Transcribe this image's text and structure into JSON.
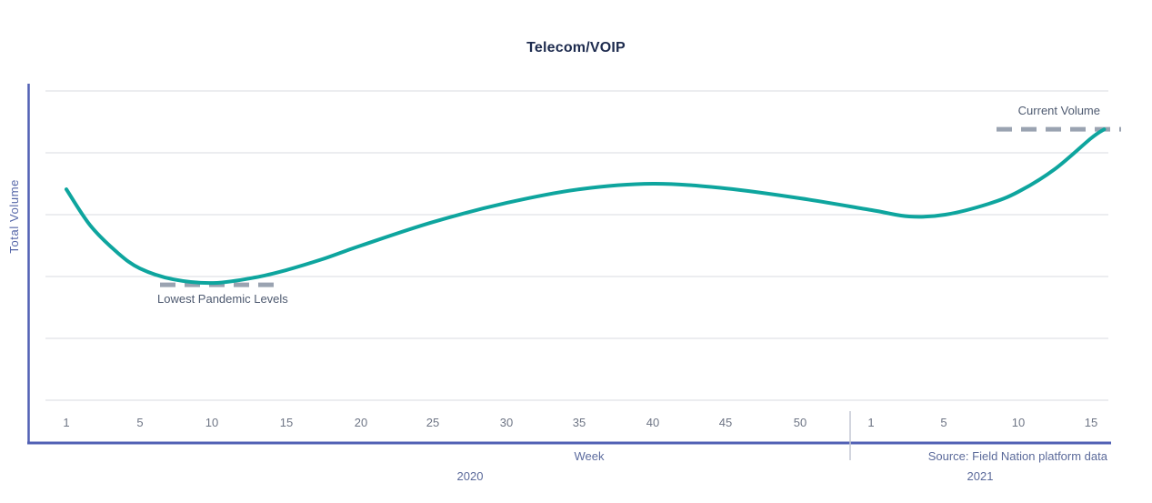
{
  "title": "Telecom/VOIP",
  "colors": {
    "curve": "#0ea59e",
    "axis": "#5160b4",
    "grid": "#d8dbe1",
    "dash": "#9aa3b1",
    "divider": "#c2c7d3",
    "title_text": "#1d2b4e",
    "tick_text": "#6e7585",
    "annotation_text": "#4e5a70"
  },
  "chart_data": {
    "type": "line",
    "title": "Telecom/VOIP",
    "xlabel": "Week",
    "ylabel": "Total Volume",
    "source": "Source: Field Nation platform data",
    "legend": "none",
    "grid": "horizontal",
    "y_axis": {
      "range": [
        0,
        100
      ],
      "gridline_values": [
        0,
        20,
        40,
        60,
        80,
        100
      ],
      "tick_labels_shown": false,
      "note": "y values are relative total volume (no numeric labels shown on axis)"
    },
    "x_axis": {
      "groups": [
        {
          "year": "2020",
          "ticks": [
            1,
            5,
            10,
            15,
            20,
            25,
            30,
            35,
            40,
            45,
            50
          ]
        },
        {
          "year": "2021",
          "ticks": [
            1,
            5,
            10,
            15
          ]
        }
      ]
    },
    "series": [
      {
        "name": "Total Volume",
        "points": [
          {
            "year": "2020",
            "week": 1.0,
            "value": 68.2
          },
          {
            "year": "2020",
            "week": 2.3,
            "value": 56.5
          },
          {
            "year": "2020",
            "week": 3.8,
            "value": 47.6
          },
          {
            "year": "2020",
            "week": 5.0,
            "value": 42.6
          },
          {
            "year": "2020",
            "week": 7.3,
            "value": 39.1
          },
          {
            "year": "2020",
            "week": 10.1,
            "value": 37.9
          },
          {
            "year": "2020",
            "week": 12.9,
            "value": 39.7
          },
          {
            "year": "2020",
            "week": 15.0,
            "value": 42.1
          },
          {
            "year": "2020",
            "week": 17.4,
            "value": 45.6
          },
          {
            "year": "2020",
            "week": 20.0,
            "value": 50.0
          },
          {
            "year": "2020",
            "week": 25.0,
            "value": 57.6
          },
          {
            "year": "2020",
            "week": 30.0,
            "value": 63.8
          },
          {
            "year": "2020",
            "week": 35.0,
            "value": 68.2
          },
          {
            "year": "2020",
            "week": 40.0,
            "value": 70.0
          },
          {
            "year": "2020",
            "week": 45.0,
            "value": 68.5
          },
          {
            "year": "2020",
            "week": 50.0,
            "value": 65.3
          },
          {
            "year": "2021",
            "week": 1.0,
            "value": 61.5
          },
          {
            "year": "2021",
            "week": 3.1,
            "value": 59.4
          },
          {
            "year": "2021",
            "week": 5.1,
            "value": 60.0
          },
          {
            "year": "2021",
            "week": 8.0,
            "value": 63.5
          },
          {
            "year": "2021",
            "week": 10.0,
            "value": 67.4
          },
          {
            "year": "2021",
            "week": 12.5,
            "value": 74.7
          },
          {
            "year": "2021",
            "week": 15.0,
            "value": 84.7
          },
          {
            "year": "2021",
            "week": 15.9,
            "value": 87.6
          }
        ]
      }
    ],
    "annotations": [
      {
        "label": "Current Volume",
        "value": 87.6,
        "style": "dashed",
        "year": "2021"
      },
      {
        "label": "Lowest Pandemic Levels",
        "value": 37.3,
        "style": "dashed",
        "year": "2020"
      }
    ]
  }
}
